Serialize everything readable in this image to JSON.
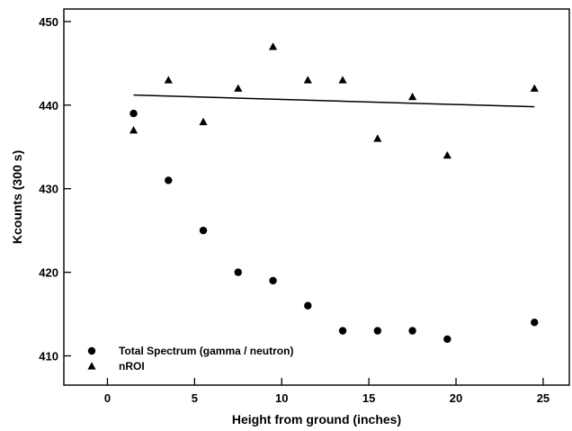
{
  "chart_data": {
    "type": "scatter",
    "xlabel": "Height from ground (inches)",
    "ylabel": "Kcounts (300 s)",
    "xlim": [
      -2.5,
      26.5
    ],
    "ylim": [
      406.5,
      451.5
    ],
    "xticks": [
      0,
      5,
      10,
      15,
      20,
      25
    ],
    "yticks": [
      410,
      420,
      430,
      440,
      450
    ],
    "grid": false,
    "legend_position": "bottom-left",
    "series": [
      {
        "name": "Total Spectrum (gamma / neutron)",
        "marker": "circle",
        "x": [
          1.5,
          3.5,
          5.5,
          7.5,
          9.5,
          11.5,
          13.5,
          15.5,
          17.5,
          19.5,
          24.5
        ],
        "y": [
          439,
          431,
          425,
          420,
          419,
          416,
          413,
          413,
          413,
          412,
          414
        ]
      },
      {
        "name": "nROI",
        "marker": "triangle",
        "x": [
          1.5,
          3.5,
          5.5,
          7.5,
          9.5,
          11.5,
          13.5,
          15.5,
          17.5,
          19.5,
          24.5
        ],
        "y": [
          437,
          443,
          438,
          442,
          447,
          443,
          443,
          436,
          441,
          434,
          442
        ]
      }
    ],
    "fit_line": {
      "x": [
        1.5,
        24.5
      ],
      "y": [
        441.2,
        439.8
      ]
    }
  }
}
